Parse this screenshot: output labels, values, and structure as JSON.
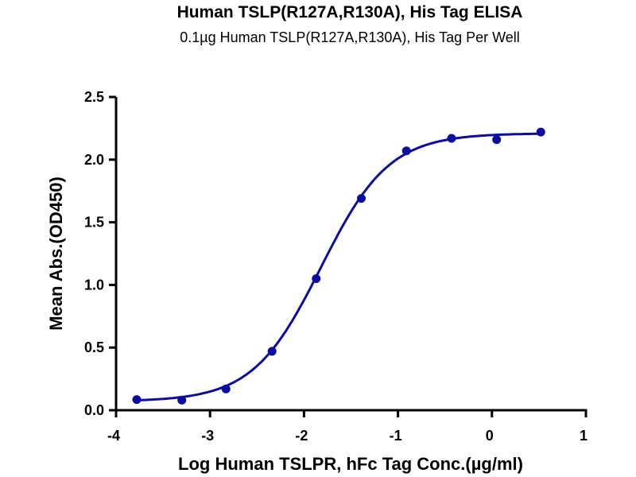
{
  "chart_data": {
    "type": "scatter",
    "title": "Human TSLP(R127A,R130A), His Tag ELISA",
    "subtitle": "0.1µg Human TSLP(R127A,R130A), His Tag Per Well",
    "xlabel": "Log Human TSLPR, hFc Tag Conc.(µg/ml)",
    "ylabel": "Mean Abs.(OD450)",
    "xlim": [
      -4,
      1
    ],
    "ylim": [
      0,
      2.5
    ],
    "xticks": [
      "-4",
      "-3",
      "-2",
      "-1",
      "0",
      "1"
    ],
    "yticks": [
      "0.0",
      "0.5",
      "1.0",
      "1.5",
      "2.0",
      "2.5"
    ],
    "grid": false,
    "series": [
      {
        "name": "data",
        "x": [
          -3.78,
          -3.3,
          -2.83,
          -2.34,
          -1.87,
          -1.39,
          -0.91,
          -0.43,
          0.05,
          0.52
        ],
        "y": [
          0.085,
          0.08,
          0.17,
          0.47,
          1.05,
          1.69,
          2.07,
          2.17,
          2.16,
          2.22
        ]
      }
    ],
    "fit": {
      "model": "4PL",
      "bottom": 0.07,
      "top": 2.21,
      "logEC50": -1.82,
      "hill": 1.2
    },
    "color": "#0c0ca3"
  }
}
